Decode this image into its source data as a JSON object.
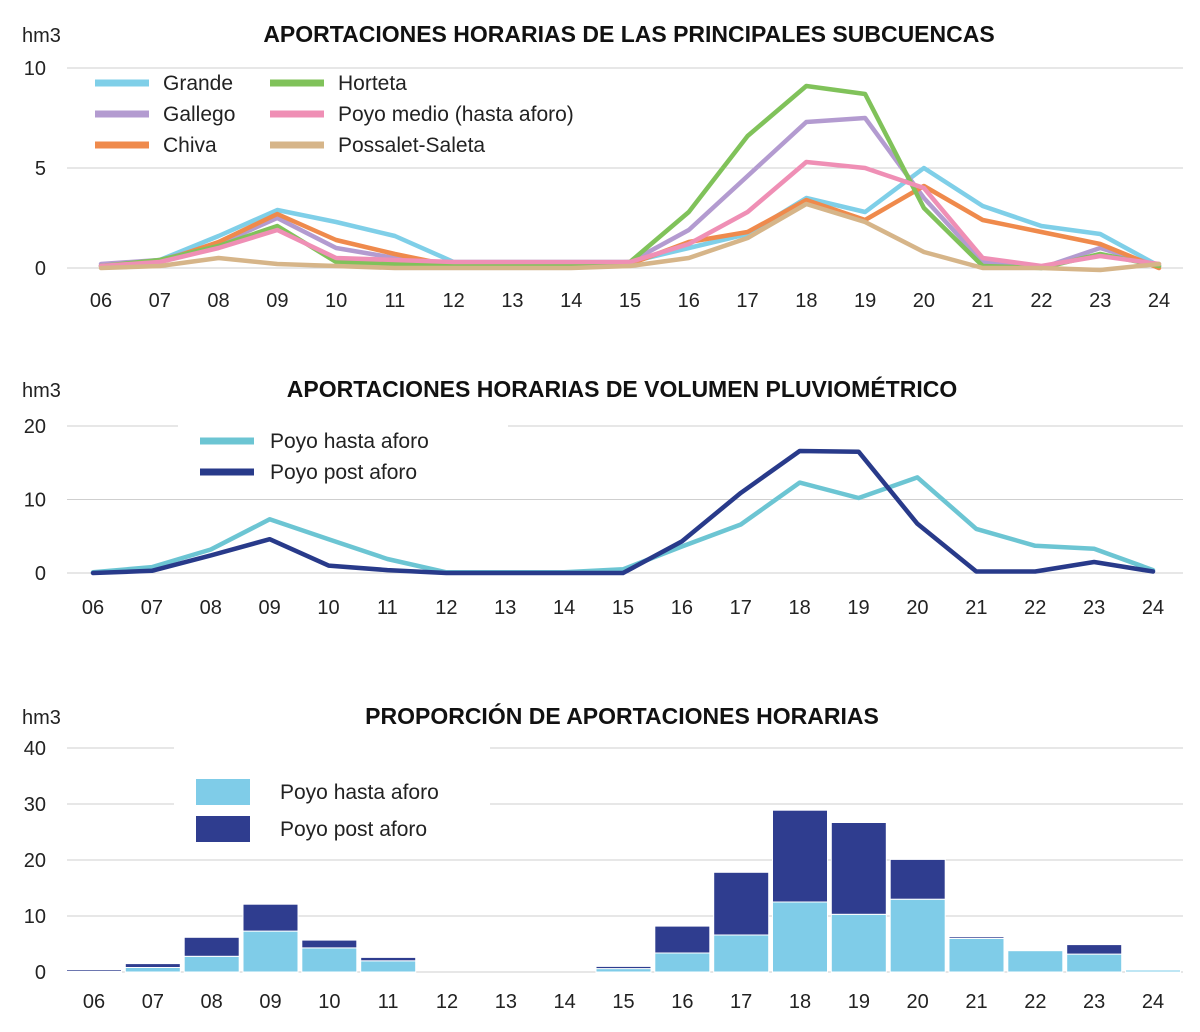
{
  "chart_data": [
    {
      "type": "line",
      "title": "APORTACIONES HORARIAS DE LAS PRINCIPALES SUBCUENCAS",
      "ylabel": "hm3",
      "xlabel": "",
      "ylim": [
        0,
        10
      ],
      "yticks": [
        "0",
        "5",
        "10"
      ],
      "ytick_values": [
        0,
        5,
        10
      ],
      "categories": [
        "06",
        "07",
        "08",
        "09",
        "10",
        "11",
        "12",
        "13",
        "14",
        "15",
        "16",
        "17",
        "18",
        "19",
        "20",
        "21",
        "22",
        "23",
        "24"
      ],
      "grid": "horizontal",
      "legend": "top-left",
      "series": [
        {
          "name": "Grande",
          "color": "#7fcfe8",
          "values": [
            0.1,
            0.4,
            1.6,
            2.9,
            2.3,
            1.6,
            0.3,
            0.3,
            0.3,
            0.3,
            1.0,
            1.7,
            3.5,
            2.8,
            5.0,
            3.1,
            2.1,
            1.7,
            0.1
          ]
        },
        {
          "name": "Gallego",
          "color": "#b39bd0",
          "values": [
            0.2,
            0.4,
            1.2,
            2.5,
            1.0,
            0.5,
            0.1,
            0.1,
            0.2,
            0.3,
            1.9,
            4.6,
            7.3,
            7.5,
            3.5,
            0.3,
            0.0,
            1.0,
            0.1
          ]
        },
        {
          "name": "Chiva",
          "color": "#ef8a4c",
          "values": [
            0.1,
            0.3,
            1.3,
            2.7,
            1.4,
            0.7,
            0.1,
            0.1,
            0.2,
            0.2,
            1.3,
            1.8,
            3.4,
            2.4,
            4.1,
            2.4,
            1.8,
            1.2,
            0.0
          ]
        },
        {
          "name": "Horteta",
          "color": "#80c25a",
          "values": [
            0.1,
            0.4,
            1.1,
            2.1,
            0.3,
            0.2,
            0.1,
            0.1,
            0.1,
            0.3,
            2.8,
            6.6,
            9.1,
            8.7,
            3.0,
            0.1,
            0.0,
            0.7,
            0.1
          ]
        },
        {
          "name": "Poyo medio (hasta aforo)",
          "color": "#ef8fb5",
          "values": [
            0.1,
            0.3,
            1.0,
            1.9,
            0.5,
            0.4,
            0.3,
            0.3,
            0.3,
            0.3,
            1.2,
            2.8,
            5.3,
            5.0,
            4.0,
            0.5,
            0.1,
            0.6,
            0.2
          ]
        },
        {
          "name": "Possalet-Saleta",
          "color": "#d6b589",
          "values": [
            0.0,
            0.1,
            0.5,
            0.2,
            0.1,
            0.0,
            0.0,
            0.0,
            0.0,
            0.1,
            0.5,
            1.5,
            3.2,
            2.3,
            0.8,
            0.0,
            0.0,
            -0.1,
            0.2
          ]
        }
      ]
    },
    {
      "type": "line",
      "title": "APORTACIONES HORARIAS DE VOLUMEN PLUVIOMÉTRICO",
      "ylabel": "hm3",
      "xlabel": "",
      "ylim": [
        0,
        20
      ],
      "yticks": [
        "0",
        "10",
        "20"
      ],
      "ytick_values": [
        0,
        10,
        20
      ],
      "categories": [
        "06",
        "07",
        "08",
        "09",
        "10",
        "11",
        "12",
        "13",
        "14",
        "15",
        "16",
        "17",
        "18",
        "19",
        "20",
        "21",
        "22",
        "23",
        "24"
      ],
      "grid": "horizontal",
      "legend": "top-left",
      "series": [
        {
          "name": "Poyo hasta aforo",
          "color": "#6cc5d3",
          "values": [
            0.1,
            0.8,
            3.2,
            7.3,
            4.6,
            1.9,
            0.1,
            0.1,
            0.1,
            0.5,
            3.6,
            6.6,
            12.3,
            10.2,
            13.0,
            6.0,
            3.7,
            3.3,
            0.4
          ]
        },
        {
          "name": "Poyo post aforo",
          "color": "#283a8a",
          "values": [
            0.0,
            0.3,
            2.4,
            4.6,
            1.0,
            0.4,
            0.0,
            0.0,
            0.0,
            0.0,
            4.3,
            10.9,
            16.6,
            16.5,
            6.7,
            0.2,
            0.2,
            1.5,
            0.2
          ]
        }
      ]
    },
    {
      "type": "bar",
      "stacked": true,
      "title": "PROPORCIÓN DE APORTACIONES HORARIAS",
      "ylabel": "hm3",
      "xlabel": "",
      "ylim": [
        0,
        40
      ],
      "yticks": [
        "0",
        "10",
        "20",
        "30",
        "40"
      ],
      "ytick_values": [
        0,
        10,
        20,
        30,
        40
      ],
      "categories": [
        "06",
        "07",
        "08",
        "09",
        "10",
        "11",
        "12",
        "13",
        "14",
        "15",
        "16",
        "17",
        "18",
        "19",
        "20",
        "21",
        "22",
        "23",
        "24"
      ],
      "grid": "horizontal",
      "legend": "top-left",
      "series": [
        {
          "name": "Poyo hasta aforo",
          "color": "#7fcce8",
          "values": [
            0.1,
            0.8,
            2.8,
            7.3,
            4.3,
            2.0,
            0.0,
            0.0,
            0.0,
            0.6,
            3.4,
            6.6,
            12.5,
            10.3,
            13.0,
            6.0,
            3.8,
            3.2,
            0.4
          ]
        },
        {
          "name": "Poyo post aforo",
          "color": "#2f3d8f",
          "values": [
            0.3,
            0.7,
            3.4,
            4.8,
            1.4,
            0.6,
            0.0,
            0.0,
            0.0,
            0.4,
            4.8,
            11.2,
            16.4,
            16.4,
            7.1,
            0.3,
            0.0,
            1.7,
            0.1
          ]
        }
      ]
    }
  ]
}
